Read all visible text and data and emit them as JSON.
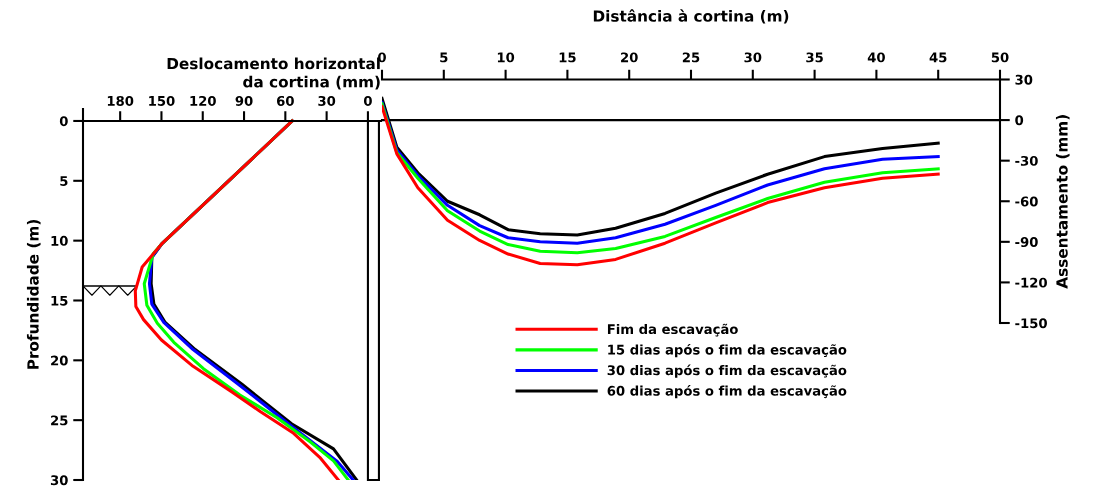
{
  "chart_data": [
    {
      "type": "line",
      "xlabel": "Deslocamento horizontal\nda cortina (mm)",
      "ylabel": "Profundidade (m)",
      "xlim": [
        207,
        -9.5
      ],
      "ylim": [
        30,
        -1
      ],
      "xticks": [
        180,
        150,
        120,
        90,
        60,
        30,
        0
      ],
      "yticks": [
        0,
        5,
        10,
        15,
        20,
        25,
        30
      ],
      "grid": false,
      "legend": "right",
      "marker": "none",
      "line_style": "solid",
      "bands": [
        {
          "axis": "x",
          "from": 0,
          "to": -8,
          "color": "#ffffff"
        }
      ],
      "series": [
        {
          "name": "Fim da escavação",
          "color": "#ff0000",
          "x": [
            55,
            150,
            164,
            169,
            168.6,
            163,
            150,
            127,
            98,
            78,
            54,
            35,
            21.5
          ],
          "values": [
            0,
            10.3,
            12.2,
            14.2,
            15.5,
            16.6,
            18.3,
            20.5,
            22.7,
            24.3,
            26.1,
            28.1,
            30
          ]
        },
        {
          "name": "15 dias após o fim da escavação",
          "color": "#00ff00",
          "x": [
            55,
            150,
            156,
            162.5,
            160.6,
            153,
            141,
            119.5,
            93,
            66,
            42,
            25,
            14.3
          ],
          "values": [
            0,
            10.3,
            11.1,
            13.6,
            15.4,
            16.9,
            18.5,
            20.7,
            22.9,
            24.8,
            26.8,
            28.4,
            30
          ]
        },
        {
          "name": "30 dias após o fim da escavação",
          "color": "#0000ff",
          "x": [
            55,
            150,
            157,
            158.7,
            157,
            148.5,
            127,
            93,
            56.6,
            22.7,
            10.7
          ],
          "values": [
            0,
            10.3,
            11.4,
            13.6,
            15.3,
            16.8,
            19.1,
            22.1,
            25.4,
            28.4,
            30
          ]
        },
        {
          "name": "60 dias após o fim da escavação",
          "color": "#000000",
          "x": [
            55,
            150,
            157,
            157.5,
            155.5,
            147.5,
            125.5,
            91.5,
            55.5,
            25,
            8.2
          ],
          "values": [
            0,
            10.3,
            11.4,
            13.6,
            15.3,
            16.8,
            19.1,
            22,
            25.3,
            27.4,
            30
          ]
        }
      ]
    },
    {
      "type": "line",
      "xlabel": "Distância à cortina (m)",
      "ylabel": "Assentamento (mm)",
      "xlim": [
        0,
        50
      ],
      "ylim": [
        -150,
        30
      ],
      "xticks": [
        0,
        5,
        10,
        15,
        20,
        25,
        30,
        35,
        40,
        45,
        50
      ],
      "yticks": [
        30,
        0,
        -30,
        -60,
        -90,
        -120,
        -150
      ],
      "grid": false,
      "marker": "none",
      "line_style": "solid",
      "x": [
        0,
        1.2,
        2.9,
        5.3,
        7.9,
        10.2,
        12.8,
        15.8,
        18.9,
        22.9,
        27.0,
        31.2,
        35.8,
        40.5,
        45.0
      ],
      "ref_lines": [
        {
          "axis": "y",
          "value": 0,
          "color": "#000000"
        }
      ],
      "series": [
        {
          "color": "#ff0000",
          "values": [
            10,
            -25,
            -50,
            -74,
            -89,
            -99,
            -106,
            -107,
            -103,
            -91,
            -76,
            -61,
            -50,
            -43,
            -40
          ]
        },
        {
          "color": "#00ff00",
          "values": [
            12,
            -24,
            -43,
            -67,
            -82,
            -92,
            -97,
            -98,
            -95,
            -86,
            -72,
            -58,
            -46,
            -39,
            -36
          ]
        },
        {
          "color": "#0000ff",
          "values": [
            13,
            -22,
            -41,
            -63,
            -78,
            -87,
            -90,
            -91,
            -87,
            -77,
            -63,
            -48,
            -36,
            -29,
            -27
          ]
        },
        {
          "color": "#000000",
          "values": [
            16,
            -20,
            -39,
            -60,
            -70,
            -81,
            -84,
            -85,
            -80,
            -69,
            -54,
            -40,
            -27,
            -21,
            -17
          ]
        }
      ]
    }
  ]
}
